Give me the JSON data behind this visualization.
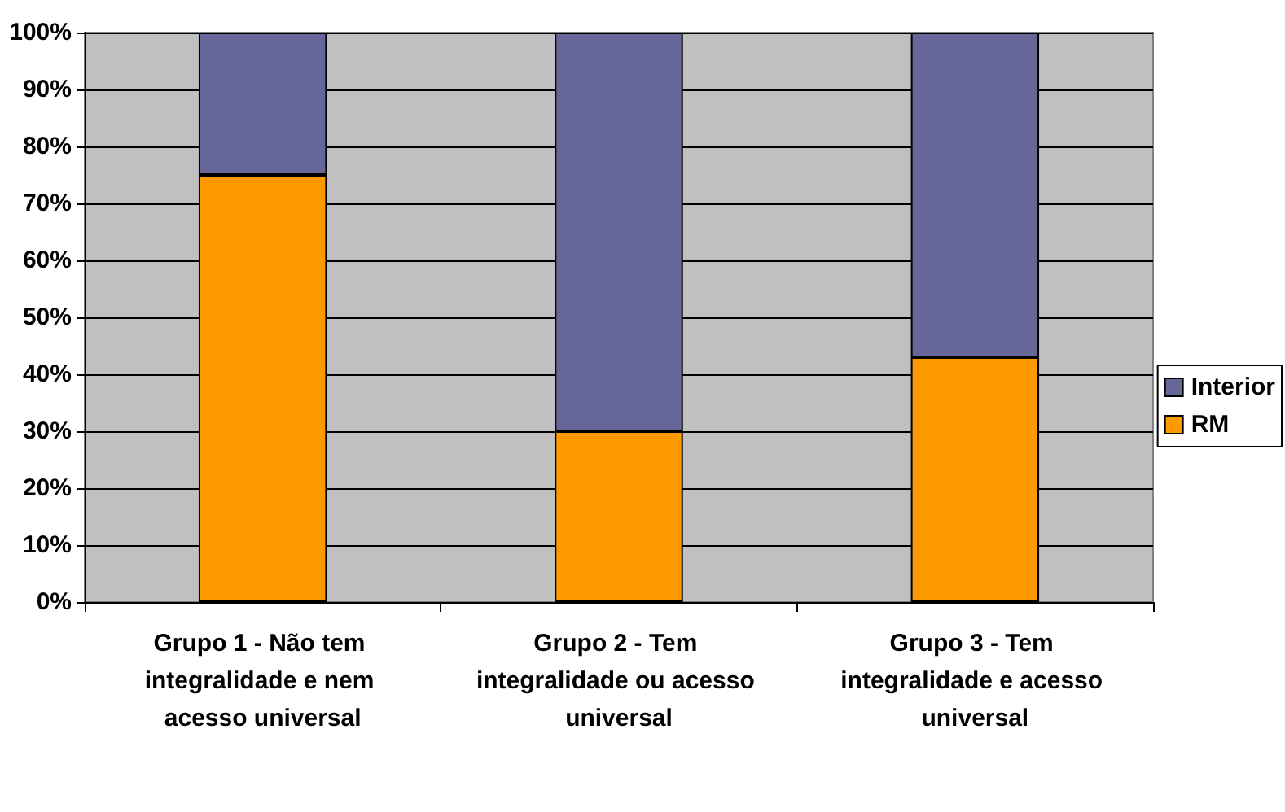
{
  "chart_data": {
    "type": "bar",
    "stacked": true,
    "categories": [
      "Grupo 1 - Não tem integralidade e nem acesso universal",
      "Grupo 2 - Tem integralidade ou acesso universal",
      "Grupo 3 - Tem integralidade e acesso universal"
    ],
    "series": [
      {
        "name": "RM",
        "color": "#ff9900",
        "values": [
          75,
          30,
          43
        ]
      },
      {
        "name": "Interior",
        "color": "#666699",
        "values": [
          25,
          70,
          57
        ]
      }
    ],
    "ylim": [
      0,
      100
    ],
    "yticks": [
      {
        "value": 0,
        "label": "0%"
      },
      {
        "value": 10,
        "label": "10%"
      },
      {
        "value": 20,
        "label": "20%"
      },
      {
        "value": 30,
        "label": "30%"
      },
      {
        "value": 40,
        "label": "40%"
      },
      {
        "value": 50,
        "label": "50%"
      },
      {
        "value": 60,
        "label": "60%"
      },
      {
        "value": 70,
        "label": "70%"
      },
      {
        "value": 80,
        "label": "80%"
      },
      {
        "value": 90,
        "label": "90%"
      },
      {
        "value": 100,
        "label": "100%"
      }
    ],
    "grid": "y",
    "legend": "right"
  }
}
